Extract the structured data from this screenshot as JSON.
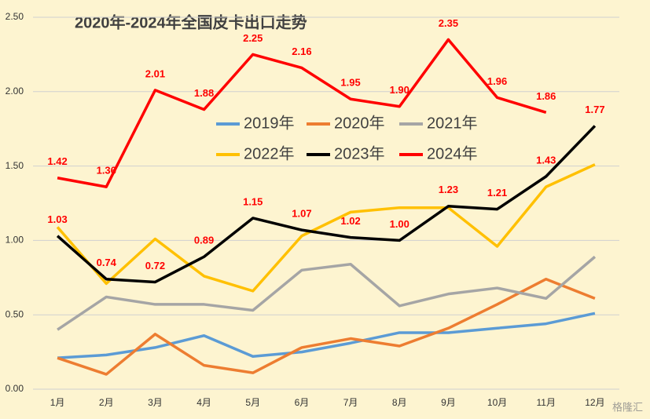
{
  "chart_data": {
    "type": "line",
    "title": "2020年-2024年全国皮卡出口走势",
    "categories": [
      "1月",
      "2月",
      "3月",
      "4月",
      "5月",
      "6月",
      "7月",
      "8月",
      "9月",
      "10月",
      "11月",
      "12月"
    ],
    "series": [
      {
        "name": "2019年",
        "color": "#5b9bd5",
        "values": [
          0.21,
          0.23,
          0.28,
          0.36,
          0.22,
          0.25,
          0.31,
          0.38,
          0.38,
          0.41,
          0.44,
          0.51
        ]
      },
      {
        "name": "2020年",
        "color": "#ed7d31",
        "values": [
          0.21,
          0.1,
          0.37,
          0.16,
          0.11,
          0.28,
          0.34,
          0.29,
          0.41,
          0.57,
          0.74,
          0.61
        ]
      },
      {
        "name": "2021年",
        "color": "#a5a5a5",
        "values": [
          0.4,
          0.62,
          0.57,
          0.57,
          0.53,
          0.8,
          0.84,
          0.56,
          0.64,
          0.68,
          0.61,
          0.89
        ]
      },
      {
        "name": "2022年",
        "color": "#ffc000",
        "values": [
          1.09,
          0.71,
          1.01,
          0.76,
          0.66,
          1.03,
          1.19,
          1.22,
          1.22,
          0.96,
          1.36,
          1.51
        ]
      },
      {
        "name": "2023年",
        "color": "#000000",
        "values": [
          1.03,
          0.74,
          0.72,
          0.89,
          1.15,
          1.07,
          1.02,
          1.0,
          1.23,
          1.21,
          1.43,
          1.77
        ],
        "value_labels": [
          "1.03",
          "0.74",
          "0.72",
          "0.89",
          "1.15",
          "1.07",
          "1.02",
          "1.00",
          "1.23",
          "1.21",
          "1.43",
          "1.77"
        ]
      },
      {
        "name": "2024年",
        "color": "#ff0000",
        "values": [
          1.42,
          1.36,
          2.01,
          1.88,
          2.25,
          2.16,
          1.95,
          1.9,
          2.35,
          1.96,
          1.86,
          null
        ],
        "value_labels": [
          "1.42",
          "1.36",
          "2.01",
          "1.88",
          "2.25",
          "2.16",
          "1.95",
          "1.90",
          "2.35",
          "1.96",
          "1.86",
          null
        ]
      }
    ],
    "ylim": [
      0,
      2.5
    ],
    "yticks": [
      {
        "value": 0,
        "label": "0.00"
      },
      {
        "value": 0.5,
        "label": "0.50"
      },
      {
        "value": 1,
        "label": "1.00"
      },
      {
        "value": 1.5,
        "label": "1.50"
      },
      {
        "value": 2,
        "label": "2.00"
      },
      {
        "value": 2.5,
        "label": "2.50"
      }
    ],
    "grid": true,
    "legend": "center",
    "label_color": "#ff0000",
    "watermark": "格隆汇"
  }
}
